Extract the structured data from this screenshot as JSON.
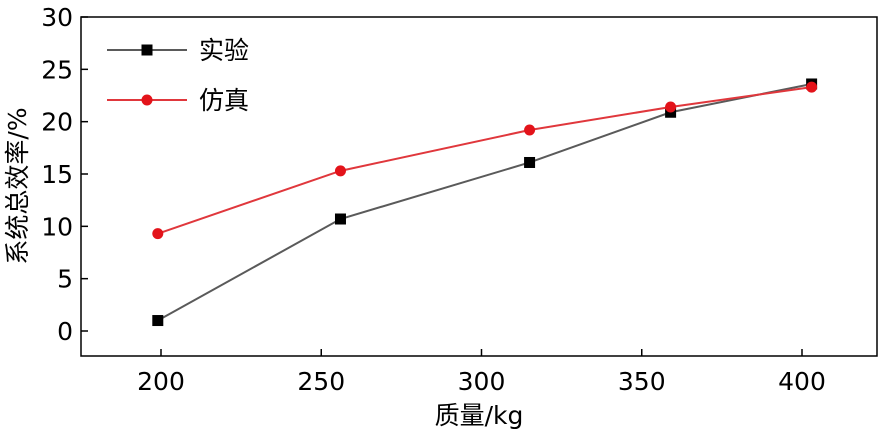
{
  "chart_data": {
    "type": "line",
    "xlabel": "质量/kg",
    "ylabel": "系统总效率/%",
    "xlim": [
      175,
      425
    ],
    "ylim": [
      -2.5,
      30
    ],
    "xticks": [
      200,
      250,
      300,
      350,
      400
    ],
    "yticks": [
      0,
      5,
      10,
      15,
      20,
      25,
      30
    ],
    "grid": false,
    "legend_position": "top-left",
    "series": [
      {
        "name": "实验",
        "color": "#5a5a5a",
        "marker_color": "#000000",
        "marker": "square",
        "x": [
          199,
          256,
          315,
          359,
          403
        ],
        "y": [
          1.0,
          10.7,
          16.1,
          20.9,
          23.6
        ]
      },
      {
        "name": "仿真",
        "color": "#e0373c",
        "marker_color": "#e3131a",
        "marker": "circle",
        "x": [
          199,
          256,
          315,
          359,
          403
        ],
        "y": [
          9.3,
          15.3,
          19.2,
          21.4,
          23.3
        ]
      }
    ]
  }
}
